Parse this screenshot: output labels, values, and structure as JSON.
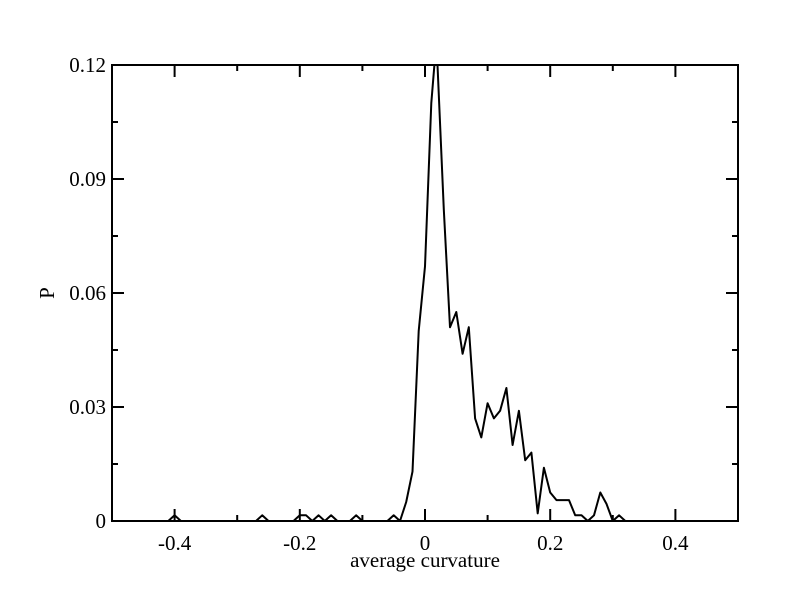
{
  "chart_data": {
    "type": "line",
    "title": "",
    "xlabel": "average curvature",
    "ylabel": "P",
    "xlim": [
      -0.5,
      0.5
    ],
    "ylim": [
      0,
      0.12
    ],
    "x_ticks": [
      -0.4,
      -0.2,
      0,
      0.2,
      0.4
    ],
    "x_tick_labels": [
      "-0.4",
      "-0.2",
      "0",
      "0.2",
      "0.4"
    ],
    "y_ticks": [
      0,
      0.03,
      0.06,
      0.09,
      0.12
    ],
    "y_tick_labels": [
      "0",
      "0.03",
      "0.06",
      "0.09",
      "0.12"
    ],
    "grid": false,
    "legend": "none",
    "series": [
      {
        "color": "#000000",
        "x": [
          -0.5,
          -0.41,
          -0.4,
          -0.39,
          -0.27,
          -0.26,
          -0.25,
          -0.21,
          -0.2,
          -0.19,
          -0.18,
          -0.17,
          -0.16,
          -0.15,
          -0.14,
          -0.12,
          -0.11,
          -0.1,
          -0.06,
          -0.05,
          -0.04,
          -0.03,
          -0.02,
          -0.01,
          0,
          0.01,
          0.015,
          0.02,
          0.03,
          0.04,
          0.05,
          0.06,
          0.07,
          0.08,
          0.09,
          0.1,
          0.11,
          0.12,
          0.13,
          0.14,
          0.15,
          0.16,
          0.17,
          0.18,
          0.19,
          0.2,
          0.21,
          0.22,
          0.23,
          0.24,
          0.25,
          0.26,
          0.27,
          0.28,
          0.29,
          0.3,
          0.31,
          0.32,
          0.5
        ],
        "y": [
          0,
          0,
          0.0015,
          0,
          0,
          0.0015,
          0,
          0,
          0.0015,
          0.0015,
          0,
          0.0015,
          0,
          0.0015,
          0,
          0,
          0.0015,
          0,
          0,
          0.0015,
          0,
          0.005,
          0.013,
          0.05,
          0.067,
          0.11,
          0.12,
          0.12,
          0.082,
          0.051,
          0.055,
          0.044,
          0.051,
          0.027,
          0.022,
          0.031,
          0.027,
          0.029,
          0.035,
          0.02,
          0.029,
          0.016,
          0.018,
          0.002,
          0.014,
          0.0075,
          0.0055,
          0.0055,
          0.0055,
          0.0015,
          0.0015,
          0,
          0.0015,
          0.0075,
          0.0045,
          0,
          0.0015,
          0,
          0
        ]
      }
    ]
  }
}
